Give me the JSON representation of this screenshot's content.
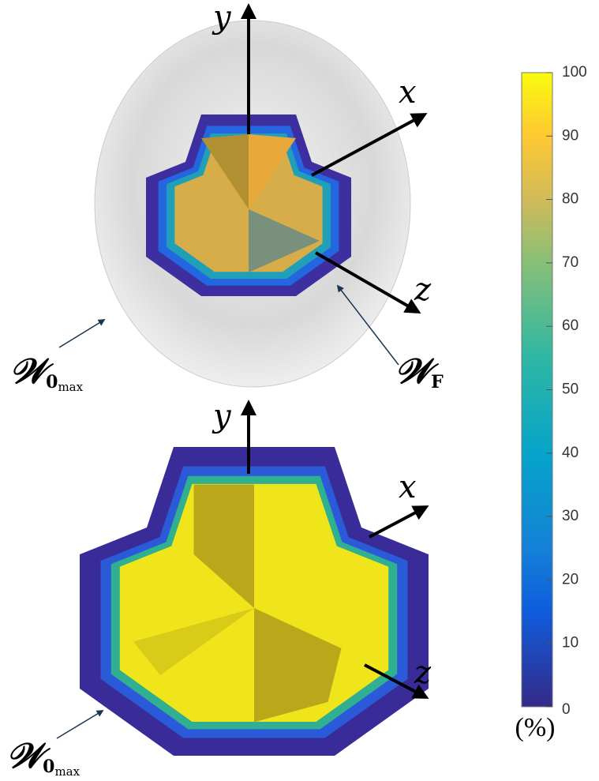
{
  "axes": {
    "top": {
      "y": "y",
      "x": "x",
      "z": "z"
    },
    "bottom": {
      "y": "y",
      "x": "x",
      "z": "z"
    }
  },
  "labels": {
    "top_outer": {
      "main": "𝒲",
      "sub": "0",
      "subsub": "max"
    },
    "top_inner": {
      "main": "𝒲",
      "sub": "F"
    },
    "bottom_outer": {
      "main": "𝒲",
      "sub": "0",
      "subsub": "max"
    }
  },
  "colorbar": {
    "lim": [
      0,
      100
    ],
    "ticks": [
      0,
      10,
      20,
      30,
      40,
      50,
      60,
      70,
      80,
      90,
      100
    ],
    "unit": "(%)"
  }
}
